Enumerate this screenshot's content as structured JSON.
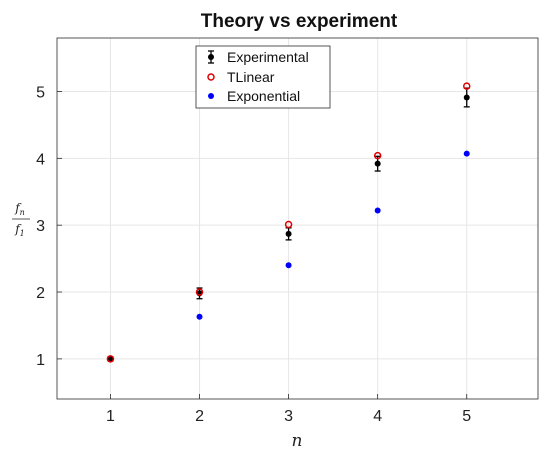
{
  "chart_data": {
    "type": "scatter",
    "title": "Theory vs experiment",
    "xlabel": "n",
    "ylabel": {
      "numerator": "f",
      "numerator_sub": "n",
      "denominator": "f",
      "denominator_sub": "1"
    },
    "xlim": [
      0.4,
      5.8
    ],
    "ylim": [
      0.4,
      5.8
    ],
    "xticks": [
      1,
      2,
      3,
      4,
      5
    ],
    "yticks": [
      1,
      2,
      3,
      4,
      5
    ],
    "grid": true,
    "legend_position": "top-center",
    "series": [
      {
        "name": "Experimental",
        "marker": "filled-circle-errorbar",
        "color": "#000000",
        "x": [
          1,
          2,
          3,
          4,
          5
        ],
        "y": [
          1.0,
          1.98,
          2.87,
          3.92,
          4.91
        ],
        "error": [
          0.03,
          0.08,
          0.09,
          0.11,
          0.14
        ]
      },
      {
        "name": "TLinear",
        "marker": "open-circle",
        "color": "#e00000",
        "x": [
          1,
          2,
          3,
          4,
          5
        ],
        "y": [
          1.0,
          2.0,
          3.01,
          4.04,
          5.08
        ]
      },
      {
        "name": "Exponential",
        "marker": "filled-circle",
        "color": "#0000ff",
        "x": [
          1,
          2,
          3,
          4,
          5
        ],
        "y": [
          1.0,
          1.63,
          2.4,
          3.22,
          4.07
        ]
      }
    ]
  }
}
